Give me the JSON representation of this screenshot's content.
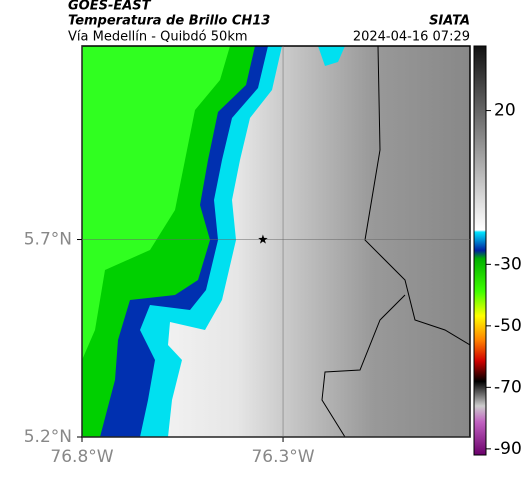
{
  "header": {
    "title": "GOES-EAST",
    "subtitle": "Temperatura de Brillo CH13",
    "region": "Vía Medellín - Quibdó 50km",
    "source": "SIATA",
    "timestamp": "2024-04-16 07:29"
  },
  "map": {
    "xlim": [
      -76.8,
      -75.835
    ],
    "ylim": [
      5.2,
      6.19
    ],
    "xticks": [
      {
        "value": -76.8,
        "label": "76.8°W"
      },
      {
        "value": -76.3,
        "label": "76.3°W"
      }
    ],
    "yticks": [
      {
        "value": 5.7,
        "label": "5.7°N"
      },
      {
        "value": 5.2,
        "label": "5.2°N"
      }
    ],
    "grid": true,
    "marker": {
      "lon": -76.35,
      "lat": 5.7
    }
  },
  "colorbar": {
    "lim": [
      41,
      -92
    ],
    "ticks": [
      20,
      -30,
      -50,
      -70,
      -90
    ]
  }
}
